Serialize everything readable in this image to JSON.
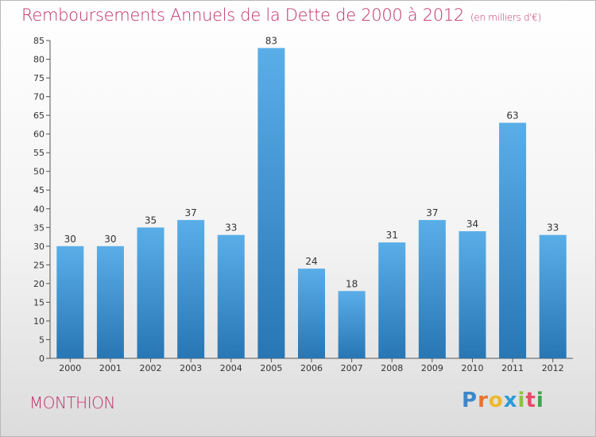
{
  "header": {
    "title": "Remboursements Annuels de la Dette de 2000 à 2012",
    "subtitle": "(en milliers d'€)"
  },
  "footer": {
    "commune": "MONTHION",
    "logo_letters": [
      "P",
      "r",
      "o",
      "x",
      "i",
      "t",
      "i"
    ]
  },
  "colors": {
    "accent": "#c0306a",
    "bar_top": "#5aaee8",
    "bar_bottom": "#2876b4",
    "logo": [
      "#3d87c8",
      "#e8742c",
      "#f0b82a",
      "#2e9ad8",
      "#8cc43c",
      "#e84a6a",
      "#3aa44a"
    ]
  },
  "chart_data": {
    "type": "bar",
    "title": "Remboursements Annuels de la Dette de 2000 à 2012",
    "subtitle": "(en milliers d'€)",
    "categories": [
      "2000",
      "2001",
      "2002",
      "2003",
      "2004",
      "2005",
      "2006",
      "2007",
      "2008",
      "2009",
      "2010",
      "2011",
      "2012"
    ],
    "values": [
      30,
      30,
      35,
      37,
      33,
      83,
      24,
      18,
      31,
      37,
      34,
      63,
      33
    ],
    "yticks": [
      "0",
      "5",
      "10",
      "15",
      "20",
      "25",
      "30",
      "35",
      "40",
      "45",
      "50",
      "55",
      "60",
      "65",
      "70",
      "75",
      "80",
      "85"
    ],
    "ylim": [
      0,
      85
    ],
    "xlabel": "",
    "ylabel": "",
    "grid": false,
    "legend": "none"
  }
}
